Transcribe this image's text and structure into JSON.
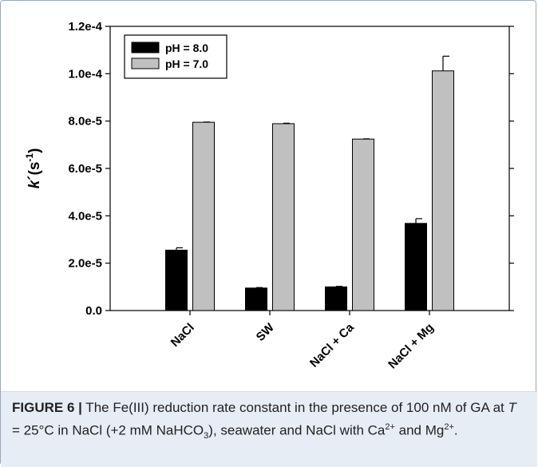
{
  "chart_data": {
    "type": "bar",
    "ylabel": {
      "k": "k",
      "prime": "´",
      "s": "(s",
      "exp": "-1",
      "close": ")"
    },
    "ylim": [
      0,
      0.00012
    ],
    "yticks": [
      {
        "value": 0,
        "label": "0.0"
      },
      {
        "value": 2e-05,
        "label": "2.0e-5"
      },
      {
        "value": 4e-05,
        "label": "4.0e-5"
      },
      {
        "value": 6e-05,
        "label": "6.0e-5"
      },
      {
        "value": 8e-05,
        "label": "8.0e-5"
      },
      {
        "value": 0.0001,
        "label": "1.0e-4"
      },
      {
        "value": 0.00012,
        "label": "1.2e-4"
      }
    ],
    "categories": [
      "NaCl",
      "SW",
      "NaCl + Ca",
      "NaCl + Mg"
    ],
    "series": [
      {
        "name": "pH = 8.0",
        "color": "#000000",
        "values": [
          2.55e-05,
          9.5e-06,
          1e-05,
          3.68e-05
        ],
        "errors": [
          1e-06,
          2e-07,
          2e-07,
          2e-06
        ]
      },
      {
        "name": "pH = 7.0",
        "color": "#c0c0c0",
        "values": [
          7.95e-05,
          7.89e-05,
          7.24e-05,
          0.0001012
        ],
        "errors": [
          1e-07,
          2e-07,
          1e-07,
          6.2e-06
        ]
      }
    ],
    "legend_position": "top-left",
    "grid": false
  },
  "caption": {
    "label": "FIGURE 6 |",
    "t1": " The Fe(III) reduction rate constant in the presence of 100 nM of GA at ",
    "T": "T",
    "t2": " = 25°C in NaCl (+2 mM NaHCO",
    "sub3": "3",
    "t3": "), seawater and NaCl with Ca",
    "sup1": "2+",
    "t4": " and Mg",
    "sup2": "2+",
    "t5": "."
  }
}
